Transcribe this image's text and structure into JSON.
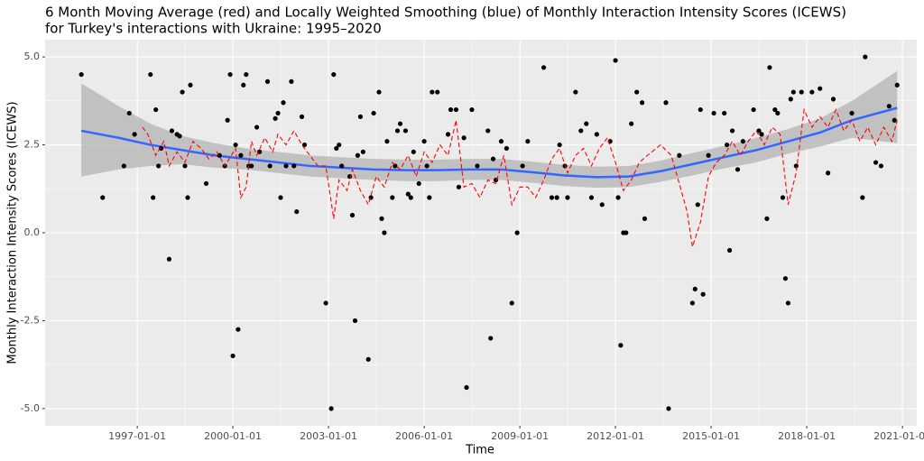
{
  "chart_data": {
    "type": "scatter",
    "title": [
      "6 Month Moving Average (red) and Locally Weighted Smoothing (blue) of Monthly Interaction Intensity Scores (ICEWS)",
      "for Turkey's interactions with Ukraine: 1995–2020"
    ],
    "xlabel": "Time",
    "ylabel": "Monthly Interaction Intensity Scores (ICEWS)",
    "xlim": [
      "1994-02-10",
      "2021-06-14"
    ],
    "ylim": [
      -5.49,
      5.49
    ],
    "xticks": [
      "1997-01-01",
      "2000-01-01",
      "2003-01-01",
      "2006-01-01",
      "2009-01-01",
      "2012-01-01",
      "2015-01-01",
      "2018-01-01",
      "2021-01-01"
    ],
    "yticks": [
      {
        "value": -5,
        "label": "-5.0"
      },
      {
        "value": -2.5,
        "label": "-2.5"
      },
      {
        "value": 0,
        "label": "0.0"
      },
      {
        "value": 2.5,
        "label": "2.5"
      },
      {
        "value": 5,
        "label": "5.0"
      }
    ],
    "grid": true,
    "series": [
      {
        "type": "scatter",
        "color": "#000000",
        "x": [
          "1995-04",
          "1995-12",
          "1996-08",
          "1996-10",
          "1996-12",
          "1997-06",
          "1997-07",
          "1997-08",
          "1997-09",
          "1997-10",
          "1998-01",
          "1998-02",
          "1998-04",
          "1998-05",
          "1998-06",
          "1998-07",
          "1998-08",
          "1998-09",
          "1999-03",
          "1999-08",
          "1999-10",
          "1999-11",
          "1999-12",
          "2000-01",
          "2000-02",
          "2000-03",
          "2000-04",
          "2000-05",
          "2000-06",
          "2000-07",
          "2000-08",
          "2000-10",
          "2000-11",
          "2001-02",
          "2001-03",
          "2001-05",
          "2001-06",
          "2001-07",
          "2001-08",
          "2001-09",
          "2001-11",
          "2001-12",
          "2002-01",
          "2002-03",
          "2002-04",
          "2002-12",
          "2003-02",
          "2003-03",
          "2003-04",
          "2003-05",
          "2003-06",
          "2003-09",
          "2003-10",
          "2003-11",
          "2003-12",
          "2004-01",
          "2004-02",
          "2004-04",
          "2004-05",
          "2004-06",
          "2004-08",
          "2004-09",
          "2004-10",
          "2004-11",
          "2005-01",
          "2005-02",
          "2005-03",
          "2005-04",
          "2005-06",
          "2005-07",
          "2005-08",
          "2005-09",
          "2005-11",
          "2006-01",
          "2006-02",
          "2006-03",
          "2006-04",
          "2006-06",
          "2006-10",
          "2006-11",
          "2007-01",
          "2007-02",
          "2007-04",
          "2007-05",
          "2007-07",
          "2007-09",
          "2008-01",
          "2008-02",
          "2008-03",
          "2008-04",
          "2008-06",
          "2008-08",
          "2008-10",
          "2008-12",
          "2009-02",
          "2009-04",
          "2009-10",
          "2010-01",
          "2010-03",
          "2010-04",
          "2010-06",
          "2010-07",
          "2010-10",
          "2010-12",
          "2011-02",
          "2011-04",
          "2011-06",
          "2011-08",
          "2011-11",
          "2012-01",
          "2012-02",
          "2012-03",
          "2012-04",
          "2012-05",
          "2012-07",
          "2012-09",
          "2012-11",
          "2012-12",
          "2013-08",
          "2013-09",
          "2014-01",
          "2014-06",
          "2014-07",
          "2014-08",
          "2014-09",
          "2014-10",
          "2014-12",
          "2015-02",
          "2015-06",
          "2015-07",
          "2015-08",
          "2015-09",
          "2015-11",
          "2016-01",
          "2016-05",
          "2016-07",
          "2016-08",
          "2016-10",
          "2016-11",
          "2017-01",
          "2017-02",
          "2017-04",
          "2017-05",
          "2017-06",
          "2017-07",
          "2017-08",
          "2017-09",
          "2017-11",
          "2018-03",
          "2018-06",
          "2018-09",
          "2018-11",
          "2019-06",
          "2019-10",
          "2019-11",
          "2020-03",
          "2020-05",
          "2020-08",
          "2020-10",
          "2020-11"
        ],
        "values": [
          4.5,
          1.0,
          1.9,
          3.4,
          2.8,
          4.5,
          1.0,
          3.5,
          1.9,
          2.4,
          -0.75,
          2.9,
          2.8,
          2.75,
          4.0,
          1.9,
          1.0,
          4.2,
          1.4,
          2.2,
          1.9,
          3.2,
          4.5,
          -3.5,
          2.5,
          -2.75,
          2.2,
          4.2,
          4.5,
          1.9,
          1.9,
          3.0,
          2.3,
          4.3,
          1.9,
          3.25,
          3.4,
          1.0,
          3.7,
          1.9,
          4.3,
          1.9,
          0.6,
          3.3,
          2.5,
          -2.0,
          -5.0,
          4.5,
          2.4,
          2.5,
          1.9,
          1.6,
          0.5,
          -2.5,
          2.2,
          3.3,
          2.3,
          -3.6,
          1.0,
          3.4,
          4.0,
          0.4,
          0.0,
          2.6,
          1.0,
          1.9,
          2.9,
          3.1,
          2.9,
          1.1,
          1.0,
          2.3,
          1.4,
          2.6,
          1.9,
          1.0,
          4.0,
          4.0,
          2.8,
          3.5,
          3.5,
          1.3,
          2.7,
          -4.4,
          3.5,
          1.9,
          2.9,
          -3.0,
          2.1,
          1.5,
          2.6,
          2.4,
          -2.0,
          0.0,
          1.9,
          2.6,
          4.7,
          1.0,
          1.0,
          2.5,
          1.9,
          1.0,
          4.0,
          2.9,
          3.1,
          1.0,
          2.8,
          0.8,
          2.6,
          4.9,
          1.0,
          -3.2,
          0.0,
          0.0,
          3.1,
          4.0,
          3.7,
          0.4,
          3.7,
          -5.0,
          2.2,
          -2.0,
          -1.6,
          0.8,
          3.5,
          -1.75,
          2.2,
          3.4,
          3.4,
          2.5,
          -0.5,
          2.9,
          1.8,
          2.6,
          3.5,
          2.9,
          2.8,
          0.4,
          4.7,
          3.5,
          3.4,
          1.0,
          -1.3,
          -2.0,
          3.8,
          4.0,
          1.9,
          4.0,
          4.0,
          4.1,
          1.7,
          3.8,
          3.4,
          1.0,
          5.0,
          2.0,
          1.9,
          3.6,
          3.2,
          4.2
        ]
      },
      {
        "type": "line",
        "color": "#ff0000",
        "dash": true,
        "x": [
          "1997-03",
          "1997-05",
          "1997-08",
          "1997-11",
          "1998-01",
          "1998-04",
          "1998-07",
          "1998-10",
          "1999-01",
          "1999-04",
          "1999-07",
          "1999-10",
          "2000-02",
          "2000-04",
          "2000-06",
          "2000-08",
          "2000-10",
          "2001-01",
          "2001-04",
          "2001-06",
          "2001-09",
          "2001-12",
          "2002-03",
          "2002-06",
          "2002-09",
          "2002-12",
          "2003-03",
          "2003-05",
          "2003-08",
          "2003-10",
          "2004-01",
          "2004-04",
          "2004-07",
          "2004-10",
          "2005-01",
          "2005-04",
          "2005-07",
          "2005-10",
          "2006-01",
          "2006-04",
          "2006-07",
          "2006-10",
          "2007-01",
          "2007-04",
          "2007-07",
          "2007-10",
          "2008-01",
          "2008-04",
          "2008-07",
          "2008-10",
          "2009-01",
          "2009-04",
          "2009-07",
          "2009-10",
          "2010-01",
          "2010-04",
          "2010-07",
          "2010-10",
          "2011-01",
          "2011-04",
          "2011-07",
          "2011-10",
          "2012-01",
          "2012-04",
          "2012-07",
          "2012-10",
          "2013-01",
          "2013-06",
          "2013-10",
          "2014-01",
          "2014-04",
          "2014-06",
          "2014-09",
          "2014-12",
          "2015-03",
          "2015-06",
          "2015-09",
          "2015-12",
          "2016-03",
          "2016-06",
          "2016-09",
          "2016-12",
          "2017-03",
          "2017-06",
          "2017-09",
          "2017-12",
          "2018-03",
          "2018-06",
          "2018-09",
          "2018-12",
          "2019-03",
          "2019-06",
          "2019-09",
          "2019-12",
          "2020-03",
          "2020-06",
          "2020-09",
          "2020-11"
        ],
        "values": [
          3.0,
          2.8,
          2.2,
          2.6,
          1.9,
          2.3,
          2.0,
          2.6,
          2.4,
          2.1,
          2.3,
          1.9,
          2.4,
          1.0,
          1.3,
          2.6,
          2.2,
          2.7,
          2.3,
          2.8,
          2.5,
          2.9,
          2.5,
          2.2,
          1.9,
          1.9,
          0.4,
          1.5,
          1.2,
          1.8,
          1.2,
          0.8,
          1.6,
          1.3,
          2.0,
          1.8,
          2.2,
          1.6,
          2.3,
          2.0,
          2.5,
          2.2,
          3.2,
          1.3,
          1.4,
          1.0,
          1.5,
          1.4,
          2.2,
          0.8,
          1.3,
          1.3,
          1.0,
          1.5,
          2.1,
          2.4,
          1.7,
          2.2,
          2.4,
          1.9,
          2.4,
          2.7,
          2.0,
          1.2,
          1.5,
          2.0,
          2.2,
          2.5,
          2.2,
          1.4,
          0.6,
          -0.4,
          0.3,
          1.6,
          2.0,
          2.2,
          2.6,
          2.2,
          2.6,
          2.9,
          2.5,
          3.0,
          2.8,
          0.8,
          1.7,
          3.5,
          3.0,
          3.3,
          3.0,
          3.5,
          2.9,
          3.2,
          2.6,
          3.0,
          2.5,
          3.0,
          2.6,
          3.2
        ]
      },
      {
        "type": "smooth",
        "color": "#3366ff",
        "band_color": "#b3b3b3",
        "x": [
          "1995-04",
          "1996-06",
          "1997-06",
          "1998-06",
          "1999-06",
          "2000-06",
          "2001-06",
          "2002-06",
          "2003-06",
          "2004-06",
          "2005-06",
          "2006-06",
          "2007-06",
          "2008-06",
          "2009-06",
          "2010-06",
          "2011-06",
          "2012-06",
          "2013-06",
          "2014-06",
          "2015-06",
          "2016-06",
          "2017-06",
          "2018-06",
          "2019-06",
          "2020-11"
        ],
        "values": [
          2.9,
          2.7,
          2.5,
          2.35,
          2.2,
          2.1,
          2.0,
          1.9,
          1.85,
          1.8,
          1.78,
          1.78,
          1.8,
          1.8,
          1.72,
          1.63,
          1.58,
          1.6,
          1.75,
          1.95,
          2.15,
          2.35,
          2.6,
          2.85,
          3.2,
          3.55
        ],
        "lower": [
          1.6,
          1.8,
          1.9,
          1.95,
          1.85,
          1.8,
          1.7,
          1.6,
          1.55,
          1.5,
          1.47,
          1.47,
          1.5,
          1.5,
          1.42,
          1.33,
          1.28,
          1.3,
          1.45,
          1.63,
          1.83,
          2.0,
          2.25,
          2.45,
          2.7,
          2.55
        ],
        "upper": [
          4.25,
          3.6,
          3.1,
          2.75,
          2.55,
          2.4,
          2.3,
          2.2,
          2.15,
          2.1,
          2.08,
          2.08,
          2.1,
          2.1,
          2.02,
          1.93,
          1.88,
          1.9,
          2.05,
          2.27,
          2.47,
          2.7,
          2.95,
          3.25,
          3.75,
          4.6
        ]
      }
    ]
  }
}
